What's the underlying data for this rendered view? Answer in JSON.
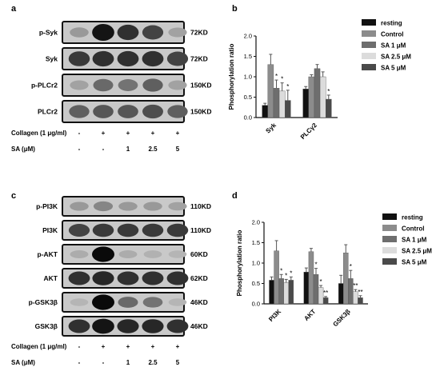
{
  "panels": {
    "a": "a",
    "b": "b",
    "c": "c",
    "d": "d"
  },
  "blots_top": {
    "rows": [
      {
        "label": "p-Syk",
        "kd": "72KD",
        "intensities": [
          0.25,
          0.95,
          0.8,
          0.7,
          0.2
        ]
      },
      {
        "label": "Syk",
        "kd": "72KD",
        "intensities": [
          0.75,
          0.8,
          0.8,
          0.8,
          0.7
        ]
      },
      {
        "label": "p-PLCr2",
        "kd": "150KD",
        "intensities": [
          0.2,
          0.5,
          0.45,
          0.55,
          0.2
        ]
      },
      {
        "label": "PLCr2",
        "kd": "150KD",
        "intensities": [
          0.55,
          0.6,
          0.6,
          0.65,
          0.55
        ]
      }
    ],
    "conditions": {
      "collagen_label": "Collagen (1 μg/ml)",
      "collagen": [
        "-",
        "+",
        "+",
        "+",
        "+"
      ],
      "sa_label": "SA (μM)",
      "sa": [
        "-",
        "-",
        "1",
        "2.5",
        "5"
      ]
    }
  },
  "blots_bottom": {
    "rows": [
      {
        "label": "p-PI3K",
        "kd": "110KD",
        "intensities": [
          0.25,
          0.35,
          0.25,
          0.25,
          0.2
        ]
      },
      {
        "label": "PI3K",
        "kd": "110KD",
        "intensities": [
          0.7,
          0.75,
          0.75,
          0.75,
          0.75
        ]
      },
      {
        "label": "p-AKT",
        "kd": "60KD",
        "intensities": [
          0.15,
          1.0,
          0.15,
          0.12,
          0.1
        ]
      },
      {
        "label": "AKT",
        "kd": "62KD",
        "intensities": [
          0.8,
          0.85,
          0.8,
          0.8,
          0.8
        ]
      },
      {
        "label": "p-GSK3β",
        "kd": "46KD",
        "intensities": [
          0.1,
          1.0,
          0.5,
          0.45,
          0.1
        ]
      },
      {
        "label": "GSK3β",
        "kd": "46KD",
        "intensities": [
          0.8,
          0.95,
          0.85,
          0.85,
          0.8
        ]
      }
    ],
    "conditions": {
      "collagen_label": "Collagen (1 μg/ml)",
      "collagen": [
        "-",
        "+",
        "+",
        "+",
        "+"
      ],
      "sa_label": "SA (μM)",
      "sa": [
        "-",
        "-",
        "1",
        "2.5",
        "5"
      ]
    }
  },
  "chart_data": [
    {
      "type": "bar",
      "title": "",
      "ylabel": "Phosphorylation ratio",
      "xlabel": "",
      "ylim": [
        0,
        2.0
      ],
      "yticks": [
        "0.0",
        "0.5",
        "1.0",
        "1.5",
        "2.0"
      ],
      "categories": [
        "Syk",
        "PLCγ2"
      ],
      "series": [
        {
          "name": "resting",
          "color": "#111111",
          "values": [
            0.3,
            0.7
          ],
          "errors": [
            0.05,
            0.06
          ]
        },
        {
          "name": "Control",
          "color": "#8c8c8c",
          "values": [
            1.3,
            1.0
          ],
          "errors": [
            0.25,
            0.05
          ]
        },
        {
          "name": "SA 1 μM",
          "color": "#6e6e6e",
          "values": [
            0.72,
            1.2
          ],
          "errors": [
            0.2,
            0.1
          ]
        },
        {
          "name": "SA 2.5 μM",
          "color": "#dcdcdc",
          "values": [
            0.65,
            1.0
          ],
          "errors": [
            0.2,
            0.12
          ]
        },
        {
          "name": "SA 5 μM",
          "color": "#4a4a4a",
          "values": [
            0.42,
            0.45
          ],
          "errors": [
            0.25,
            0.1
          ]
        }
      ],
      "significance": [
        [
          "",
          "",
          "*",
          "*",
          "*"
        ],
        [
          "",
          "",
          "",
          "",
          "*"
        ]
      ],
      "legend_position": "top-right"
    },
    {
      "type": "bar",
      "title": "",
      "ylabel": "Phosphorylation ratio",
      "xlabel": "",
      "ylim": [
        0,
        2.0
      ],
      "yticks": [
        "0.0",
        "0.5",
        "1.0",
        "1.5",
        "2.0"
      ],
      "categories": [
        "PI3K",
        "AKT",
        "GSK3β"
      ],
      "series": [
        {
          "name": "resting",
          "color": "#111111",
          "values": [
            0.58,
            0.78,
            0.5
          ],
          "errors": [
            0.08,
            0.1,
            0.2
          ]
        },
        {
          "name": "Control",
          "color": "#8c8c8c",
          "values": [
            1.3,
            1.28,
            1.25
          ],
          "errors": [
            0.25,
            0.08,
            0.2
          ]
        },
        {
          "name": "SA 1 μM",
          "color": "#6e6e6e",
          "values": [
            0.62,
            0.72,
            0.62
          ],
          "errors": [
            0.1,
            0.15,
            0.2
          ]
        },
        {
          "name": "SA 2.5 μM",
          "color": "#dcdcdc",
          "values": [
            0.52,
            0.4,
            0.3
          ],
          "errors": [
            0.08,
            0.05,
            0.05
          ]
        },
        {
          "name": "SA 5 μM",
          "color": "#4a4a4a",
          "values": [
            0.58,
            0.15,
            0.15
          ],
          "errors": [
            0.08,
            0.03,
            0.05
          ]
        }
      ],
      "significance": [
        [
          "",
          "",
          "*",
          "*",
          "*"
        ],
        [
          "",
          "",
          "*",
          "*",
          "**"
        ],
        [
          "",
          "",
          "*",
          "**",
          "**"
        ]
      ],
      "legend_position": "top-right"
    }
  ]
}
